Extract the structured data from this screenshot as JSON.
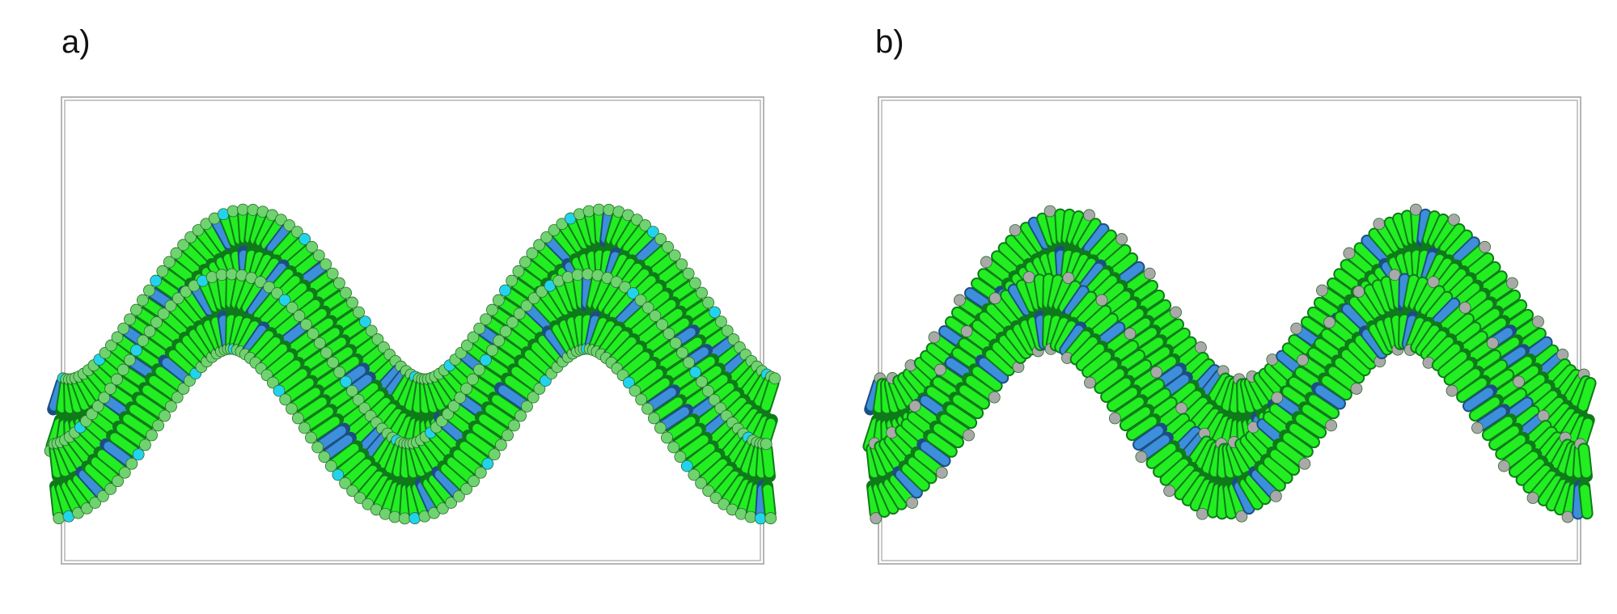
{
  "panels": [
    {
      "label": "a)",
      "head_color": "#6fd36f",
      "accent_head": "#22d3ee"
    },
    {
      "label": "b)",
      "head_color": "#a9a9a9",
      "accent_head": "#a9a9a9"
    }
  ],
  "colors": {
    "frame": "#b5b5b5",
    "lipid_tail": "#22ee22",
    "lipid_tail_dark": "#0f7a1a",
    "blue_lipid": "#3d8fdc",
    "blue_dark": "#1c4f80",
    "background": "#ffffff"
  }
}
